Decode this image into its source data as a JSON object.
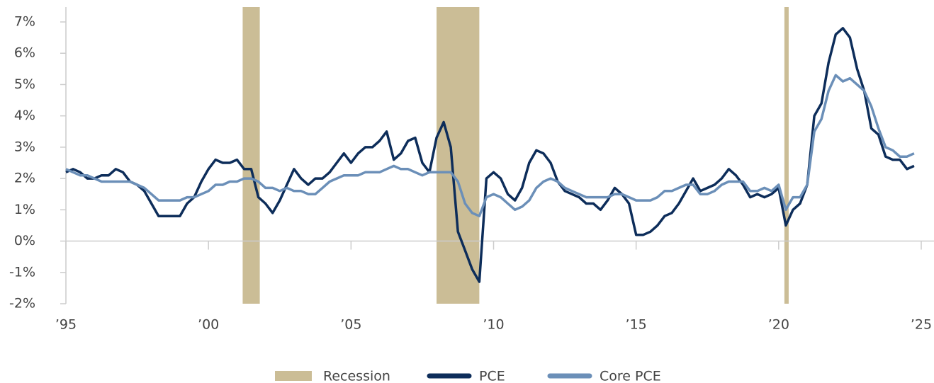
{
  "chart_data": {
    "type": "line",
    "x": [
      1995,
      1995.25,
      1995.5,
      1995.75,
      1996,
      1996.25,
      1996.5,
      1996.75,
      1997,
      1997.25,
      1997.5,
      1997.75,
      1998,
      1998.25,
      1998.5,
      1998.75,
      1999,
      1999.25,
      1999.5,
      1999.75,
      2000,
      2000.25,
      2000.5,
      2000.75,
      2001,
      2001.25,
      2001.5,
      2001.75,
      2002,
      2002.25,
      2002.5,
      2002.75,
      2003,
      2003.25,
      2003.5,
      2003.75,
      2004,
      2004.25,
      2004.5,
      2004.75,
      2005,
      2005.25,
      2005.5,
      2005.75,
      2006,
      2006.25,
      2006.5,
      2006.75,
      2007,
      2007.25,
      2007.5,
      2007.75,
      2008,
      2008.25,
      2008.5,
      2008.75,
      2009,
      2009.25,
      2009.5,
      2009.75,
      2010,
      2010.25,
      2010.5,
      2010.75,
      2011,
      2011.25,
      2011.5,
      2011.75,
      2012,
      2012.25,
      2012.5,
      2012.75,
      2013,
      2013.25,
      2013.5,
      2013.75,
      2014,
      2014.25,
      2014.5,
      2014.75,
      2015,
      2015.25,
      2015.5,
      2015.75,
      2016,
      2016.25,
      2016.5,
      2016.75,
      2017,
      2017.25,
      2017.5,
      2017.75,
      2018,
      2018.25,
      2018.5,
      2018.75,
      2019,
      2019.25,
      2019.5,
      2019.75,
      2020,
      2020.25,
      2020.5,
      2020.75,
      2021,
      2021.25,
      2021.5,
      2021.75,
      2022,
      2022.25,
      2022.5,
      2022.75,
      2023,
      2023.25,
      2023.5,
      2023.75,
      2024,
      2024.25,
      2024.5,
      2024.75
    ],
    "series": [
      {
        "name": "PCE",
        "color": "#0d2d5a",
        "values": [
          2.2,
          2.3,
          2.2,
          2.0,
          2.0,
          2.1,
          2.1,
          2.3,
          2.2,
          1.9,
          1.8,
          1.6,
          1.2,
          0.8,
          0.8,
          0.8,
          0.8,
          1.2,
          1.4,
          1.9,
          2.3,
          2.6,
          2.5,
          2.5,
          2.6,
          2.3,
          2.3,
          1.4,
          1.2,
          0.9,
          1.3,
          1.8,
          2.3,
          2.0,
          1.8,
          2.0,
          2.0,
          2.2,
          2.5,
          2.8,
          2.5,
          2.8,
          3.0,
          3.0,
          3.2,
          3.5,
          2.6,
          2.8,
          3.2,
          3.3,
          2.5,
          2.2,
          3.3,
          3.8,
          3.0,
          0.3,
          -0.3,
          -0.9,
          -1.3,
          2.0,
          2.2,
          2.0,
          1.5,
          1.3,
          1.7,
          2.5,
          2.9,
          2.8,
          2.5,
          1.9,
          1.6,
          1.5,
          1.4,
          1.2,
          1.2,
          1.0,
          1.3,
          1.7,
          1.5,
          1.2,
          0.2,
          0.2,
          0.3,
          0.5,
          0.8,
          0.9,
          1.2,
          1.6,
          2.0,
          1.6,
          1.7,
          1.8,
          2.0,
          2.3,
          2.1,
          1.8,
          1.4,
          1.5,
          1.4,
          1.5,
          1.7,
          0.5,
          1.0,
          1.2,
          1.8,
          4.0,
          4.4,
          5.7,
          6.6,
          6.8,
          6.5,
          5.5,
          4.8,
          3.6,
          3.4,
          2.7,
          2.6,
          2.6,
          2.3,
          2.4
        ]
      },
      {
        "name": "Core PCE",
        "color": "#6b8fb8",
        "values": [
          2.3,
          2.2,
          2.1,
          2.1,
          2.0,
          1.9,
          1.9,
          1.9,
          1.9,
          1.9,
          1.8,
          1.7,
          1.5,
          1.3,
          1.3,
          1.3,
          1.3,
          1.4,
          1.4,
          1.5,
          1.6,
          1.8,
          1.8,
          1.9,
          1.9,
          2.0,
          2.0,
          1.9,
          1.7,
          1.7,
          1.6,
          1.7,
          1.6,
          1.6,
          1.5,
          1.5,
          1.7,
          1.9,
          2.0,
          2.1,
          2.1,
          2.1,
          2.2,
          2.2,
          2.2,
          2.3,
          2.4,
          2.3,
          2.3,
          2.2,
          2.1,
          2.2,
          2.2,
          2.2,
          2.2,
          1.9,
          1.2,
          0.9,
          0.8,
          1.4,
          1.5,
          1.4,
          1.2,
          1.0,
          1.1,
          1.3,
          1.7,
          1.9,
          2.0,
          1.9,
          1.7,
          1.6,
          1.5,
          1.4,
          1.4,
          1.4,
          1.4,
          1.5,
          1.5,
          1.4,
          1.3,
          1.3,
          1.3,
          1.4,
          1.6,
          1.6,
          1.7,
          1.8,
          1.8,
          1.5,
          1.5,
          1.6,
          1.8,
          1.9,
          1.9,
          1.9,
          1.6,
          1.6,
          1.7,
          1.6,
          1.8,
          1.0,
          1.4,
          1.4,
          1.8,
          3.5,
          3.9,
          4.8,
          5.3,
          5.1,
          5.2,
          5.0,
          4.8,
          4.3,
          3.6,
          3.0,
          2.9,
          2.7,
          2.7,
          2.8
        ]
      }
    ],
    "recession_label": "Recession",
    "recession_color": "#cbbd96",
    "recessions": [
      [
        2001.2,
        2001.8
      ],
      [
        2008.0,
        2009.5
      ],
      [
        2020.2,
        2020.35
      ]
    ],
    "xlim": [
      1995,
      2025
    ],
    "xticks": [
      {
        "value": 1995,
        "label": "’95"
      },
      {
        "value": 2000,
        "label": "’00"
      },
      {
        "value": 2005,
        "label": "’05"
      },
      {
        "value": 2010,
        "label": "’10"
      },
      {
        "value": 2015,
        "label": "’15"
      },
      {
        "value": 2020,
        "label": "’20"
      },
      {
        "value": 2025,
        "label": "’25"
      }
    ],
    "ylim": [
      -2,
      7
    ],
    "yticks": [
      {
        "value": -2,
        "label": "-2%"
      },
      {
        "value": -1,
        "label": "-1%"
      },
      {
        "value": 0,
        "label": "0%"
      },
      {
        "value": 1,
        "label": "1%"
      },
      {
        "value": 2,
        "label": "2%"
      },
      {
        "value": 3,
        "label": "3%"
      },
      {
        "value": 4,
        "label": "4%"
      },
      {
        "value": 5,
        "label": "5%"
      },
      {
        "value": 6,
        "label": "6%"
      },
      {
        "value": 7,
        "label": "7%"
      }
    ]
  }
}
